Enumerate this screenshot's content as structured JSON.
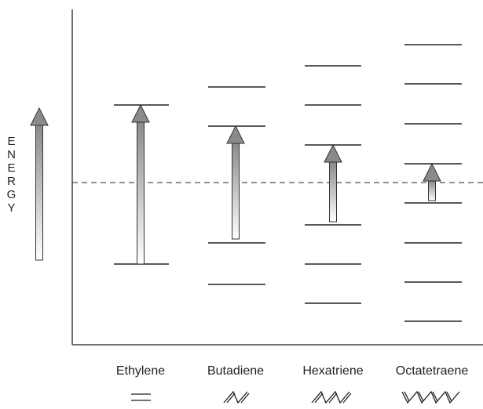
{
  "axis_label": "ENERGY",
  "molecules": [
    {
      "name": "Ethylene"
    },
    {
      "name": "Butadiene"
    },
    {
      "name": "Hexatriene"
    },
    {
      "name": "Octatetraene"
    }
  ]
}
